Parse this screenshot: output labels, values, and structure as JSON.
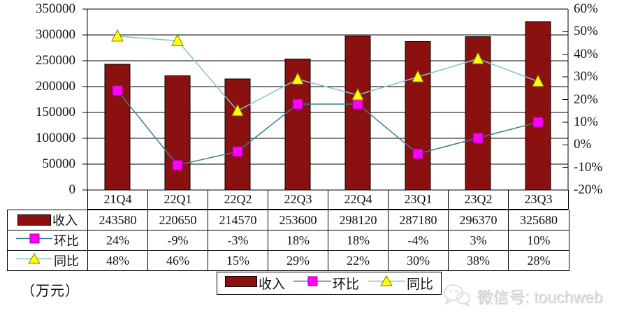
{
  "chart_data": {
    "type": "bar",
    "title": "",
    "categories": [
      "21Q4",
      "22Q1",
      "22Q2",
      "22Q3",
      "22Q4",
      "23Q1",
      "23Q2",
      "23Q3"
    ],
    "series": [
      {
        "name": "收入",
        "chart_type": "bar",
        "axis": "left",
        "values": [
          243580,
          220650,
          214570,
          253600,
          298120,
          287180,
          296370,
          325680
        ],
        "table_display": [
          "243580",
          "220650",
          "214570",
          "253600",
          "298120",
          "287180",
          "296370",
          "325680"
        ],
        "color": "#8B1010",
        "border_color": "#000000"
      },
      {
        "name": "环比",
        "chart_type": "line",
        "axis": "right",
        "marker": "square",
        "values": [
          24,
          -9,
          -3,
          18,
          18,
          -4,
          3,
          10
        ],
        "table_display": [
          "24%",
          "-9%",
          "-3%",
          "18%",
          "18%",
          "-4%",
          "3%",
          "10%"
        ],
        "line_color": "#35808E",
        "marker_color": "#FF00FF",
        "marker_border": "#990099"
      },
      {
        "name": "同比",
        "chart_type": "line",
        "axis": "right",
        "marker": "triangle",
        "values": [
          48,
          46,
          15,
          29,
          22,
          30,
          38,
          28
        ],
        "table_display": [
          "48%",
          "46%",
          "15%",
          "29%",
          "22%",
          "30%",
          "38%",
          "28%"
        ],
        "line_color": "#82C2CC",
        "marker_color": "#FFFF00",
        "marker_border": "#7F7F00"
      }
    ],
    "left_axis": {
      "min": 0,
      "max": 350000,
      "step": 50000,
      "tick_labels": [
        "350000",
        "300000",
        "250000",
        "200000",
        "150000",
        "100000",
        "50000",
        "0"
      ]
    },
    "right_axis": {
      "min": -20,
      "max": 60,
      "step": 10,
      "tick_labels": [
        "60%",
        "50%",
        "40%",
        "30%",
        "20%",
        "10%",
        "0%",
        "-10%",
        "-20%"
      ]
    },
    "grid": "horizontal",
    "legend_position": "bottom"
  },
  "legend": {
    "items": [
      "收入",
      "环比",
      "同比"
    ]
  },
  "unit_label": "（万元）",
  "watermark": {
    "icon": "wechat-icon",
    "text": "微信号: touchweb"
  }
}
